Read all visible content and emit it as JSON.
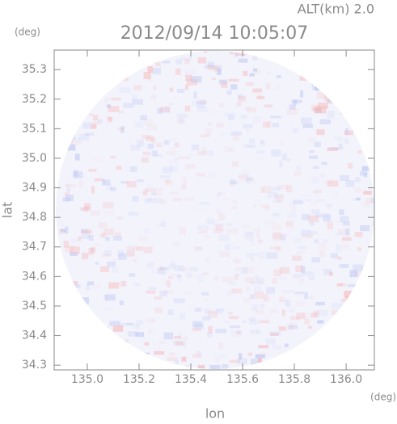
{
  "chart_data": {
    "type": "radar-field",
    "title": "2012/09/14 10:05:07",
    "annotation": "ALT(km) 2.0",
    "x_label": "lon",
    "y_label": "lat",
    "x_unit": "(deg)",
    "y_unit": "(deg)",
    "xlim": [
      134.872,
      136.109
    ],
    "ylim": [
      34.284,
      35.366
    ],
    "xticks": [
      {
        "value": 135,
        "label": "135.0"
      },
      135.2,
      135.4,
      135.6,
      135.8,
      {
        "value": 136,
        "label": "136.0"
      }
    ],
    "yticks": [
      34.3,
      34.4,
      34.5,
      34.6,
      34.7,
      34.8,
      34.9,
      {
        "value": 35,
        "label": "35.0"
      },
      35.1,
      35.2,
      35.3
    ]
  }
}
